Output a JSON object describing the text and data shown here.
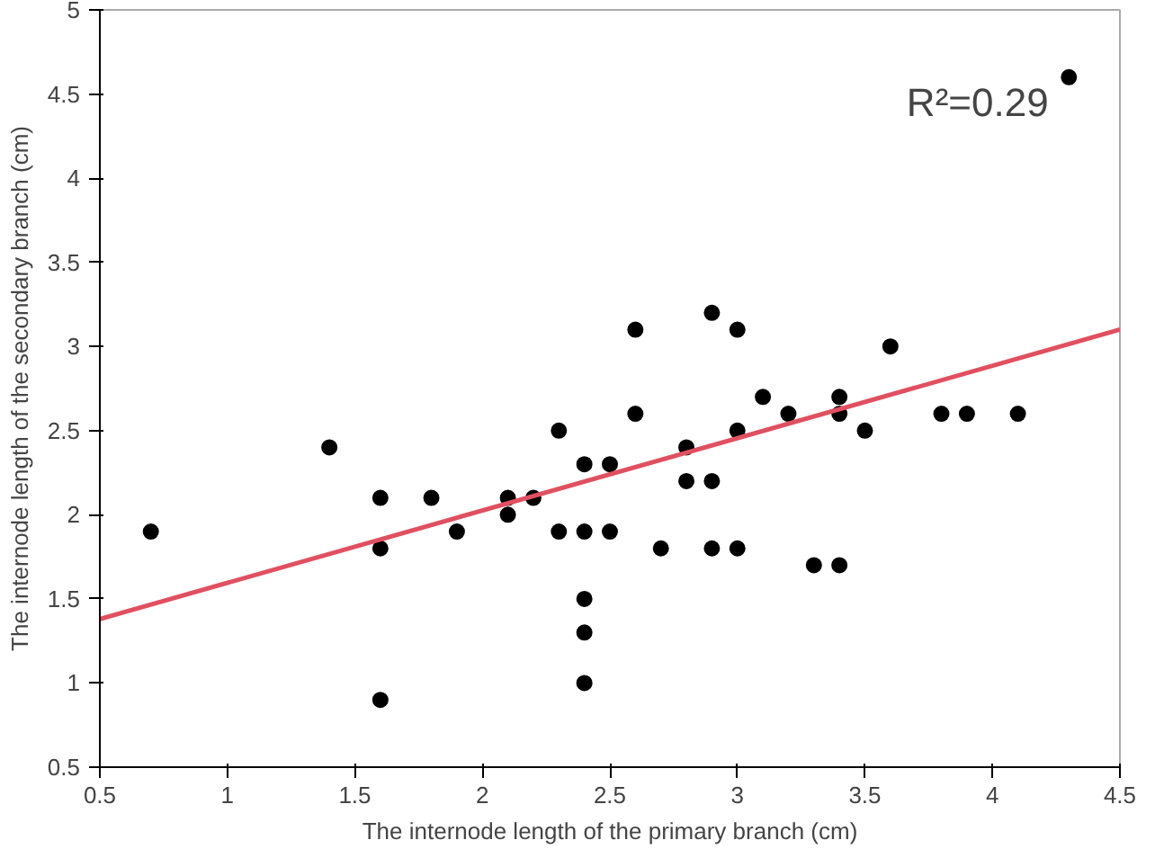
{
  "chart_data": {
    "type": "scatter",
    "xlabel": "The internode length of the primary branch (cm)",
    "ylabel": "The internode length of the secondary branch (cm)",
    "xlim": [
      0.5,
      4.5
    ],
    "ylim": [
      0.5,
      5
    ],
    "xticks": [
      0.5,
      1,
      1.5,
      2,
      2.5,
      3,
      3.5,
      4,
      4.5
    ],
    "yticks": [
      0.5,
      1,
      1.5,
      2,
      2.5,
      3,
      3.5,
      4,
      4.5,
      5
    ],
    "grid": false,
    "marker": "circle",
    "annotations": [
      "R²=0.29"
    ],
    "series": [
      {
        "color": "#000000",
        "x": [
          0.7,
          1.4,
          1.6,
          1.6,
          1.6,
          1.8,
          1.9,
          2.1,
          2.1,
          2.2,
          2.3,
          2.3,
          2.4,
          2.4,
          2.4,
          2.4,
          2.4,
          2.5,
          2.5,
          2.6,
          2.6,
          2.7,
          2.8,
          2.8,
          2.9,
          2.9,
          2.9,
          3.0,
          3.0,
          3.0,
          3.1,
          3.2,
          3.3,
          3.4,
          3.4,
          3.4,
          3.5,
          3.6,
          3.8,
          3.9,
          4.1,
          4.3
        ],
        "values": [
          1.9,
          2.4,
          2.1,
          1.8,
          0.9,
          2.1,
          1.9,
          2.1,
          2.0,
          2.1,
          2.5,
          1.9,
          2.3,
          1.9,
          1.5,
          1.3,
          1.0,
          2.3,
          1.9,
          3.1,
          2.6,
          1.8,
          2.4,
          2.2,
          3.2,
          2.2,
          1.8,
          3.1,
          2.5,
          1.8,
          2.7,
          2.6,
          1.7,
          2.7,
          2.6,
          1.7,
          2.5,
          3.0,
          2.6,
          2.6,
          2.6,
          4.6
        ]
      },
      {
        "type": "line",
        "color": "#e05060",
        "x": [
          0.5,
          4.5
        ],
        "values": [
          1.38,
          3.1
        ],
        "line_style": "solid",
        "marker": "none"
      }
    ]
  }
}
